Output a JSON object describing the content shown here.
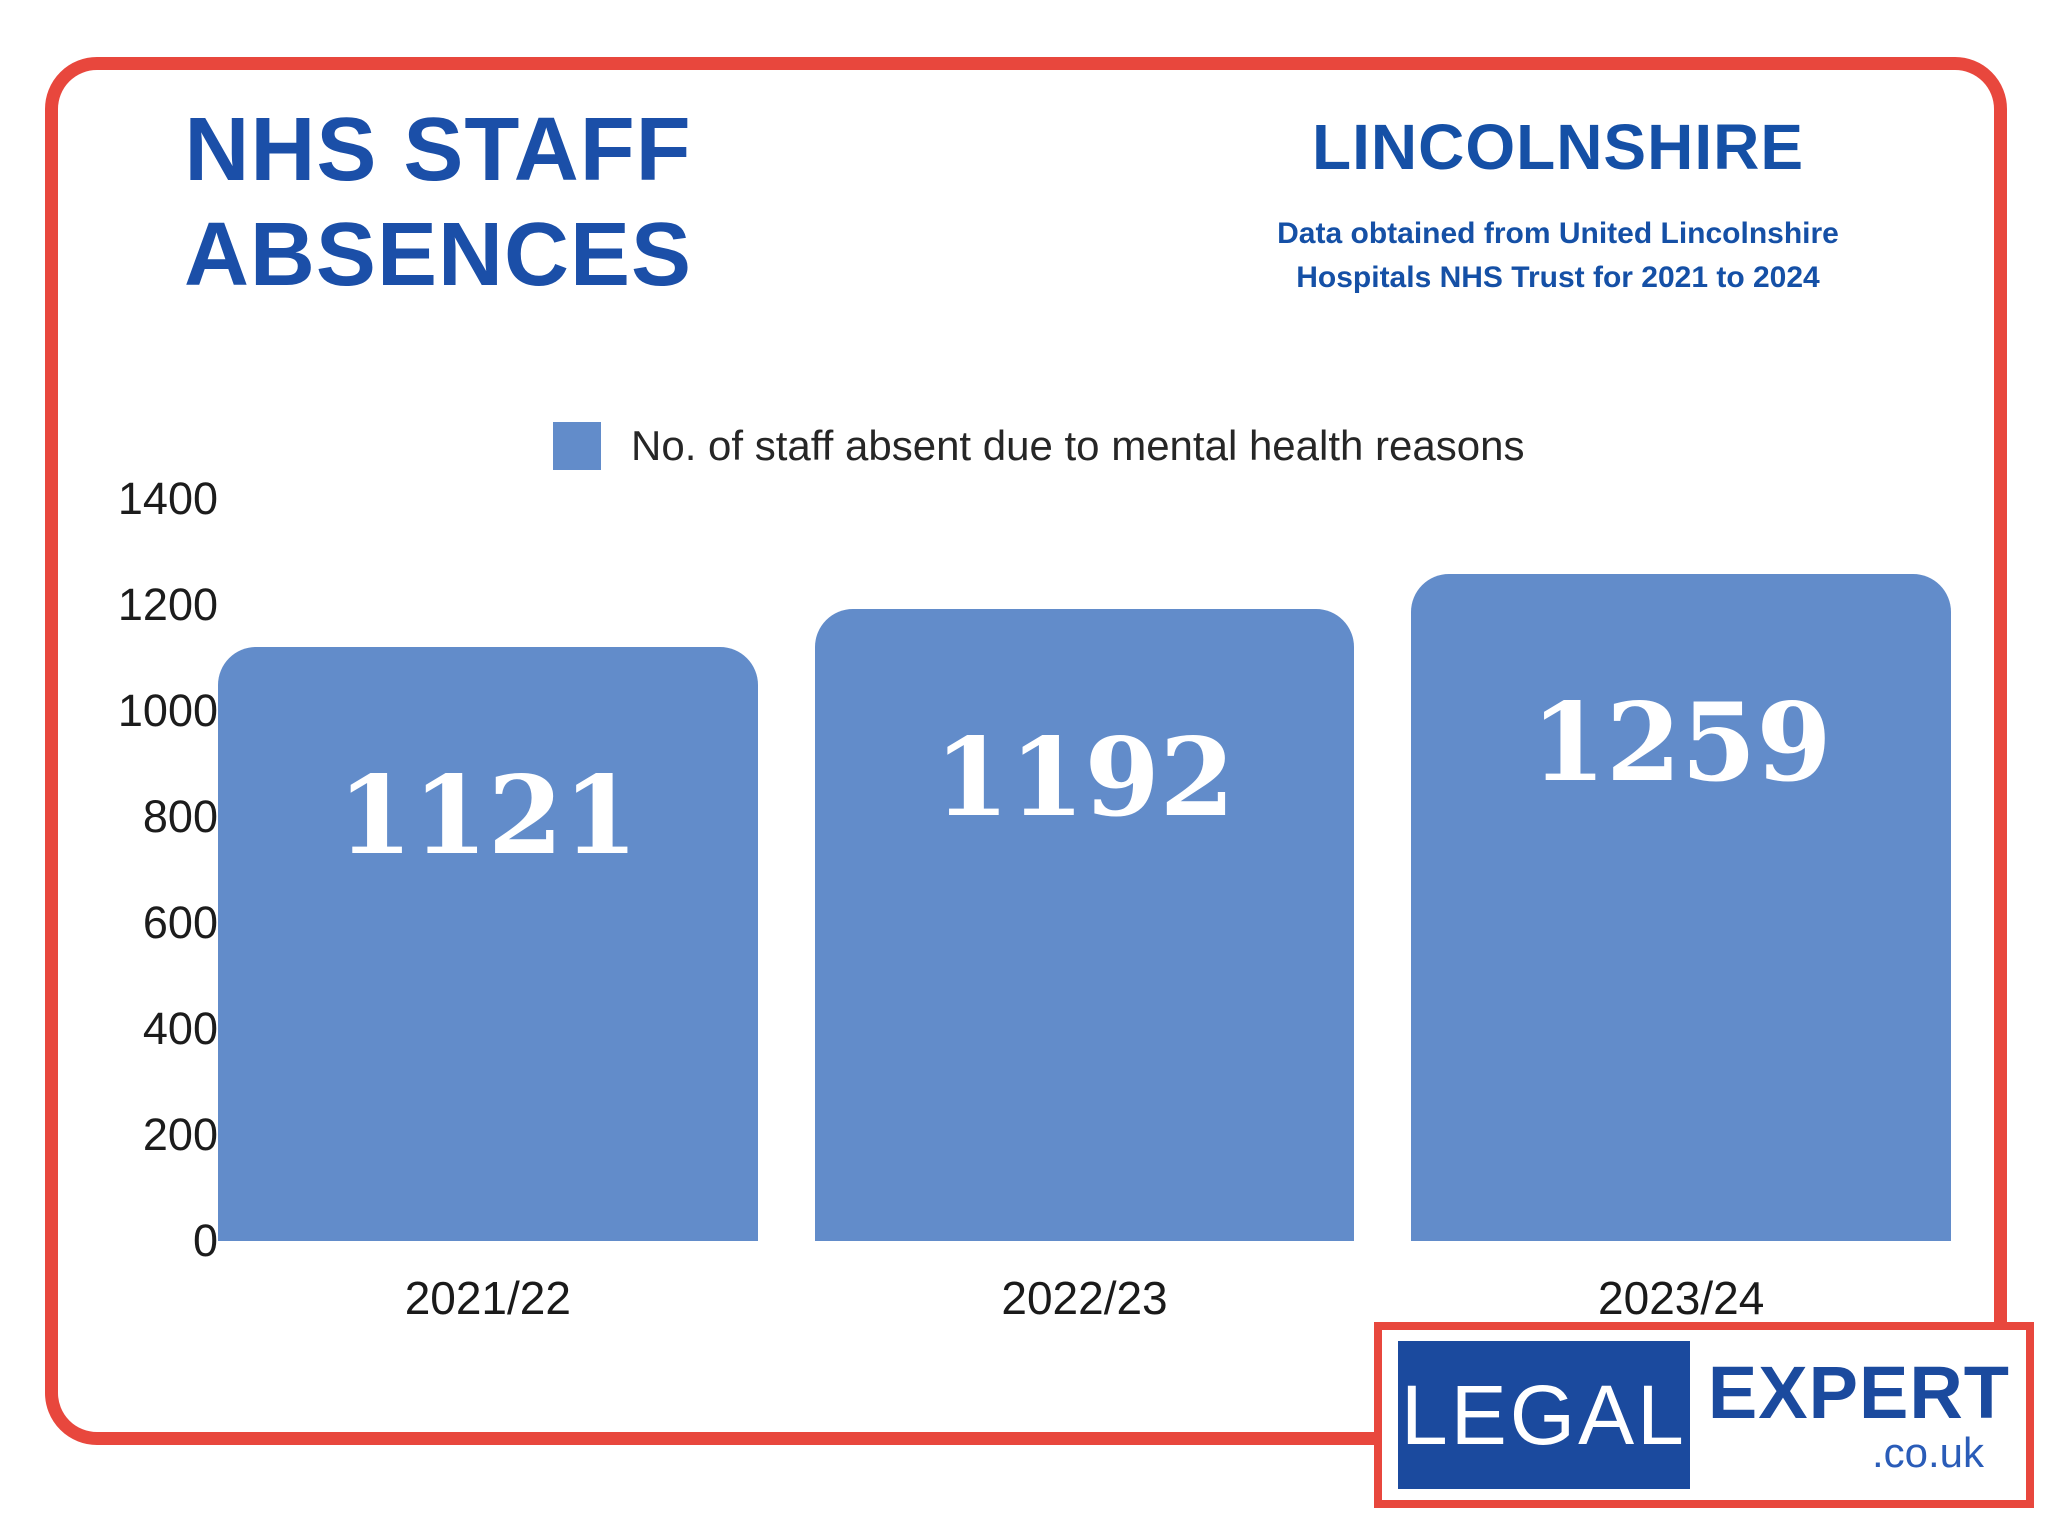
{
  "header": {
    "title_line1": "NHS STAFF",
    "title_line2": "ABSENCES",
    "region": "LINCOLNSHIRE",
    "source_line1": "Data obtained from United Lincolnshire",
    "source_line2": "Hospitals NHS Trust for 2021 to 2024"
  },
  "legend": {
    "label": "No. of staff absent due to mental health reasons",
    "swatch_color": "#628cca"
  },
  "chart_data": {
    "type": "bar",
    "title": "NHS Staff Absences — Lincolnshire",
    "categories": [
      "2021/22",
      "2022/23",
      "2023/24"
    ],
    "values": [
      1121,
      1192,
      1259
    ],
    "series_name": "No. of staff absent due to mental health reasons",
    "xlabel": "",
    "ylabel": "",
    "ylim": [
      0,
      1400
    ],
    "yticks": [
      0,
      200,
      400,
      600,
      800,
      1000,
      1200,
      1400
    ],
    "grid": false,
    "legend_position": "top-center",
    "bar_color": "#628cca",
    "value_label_color": "#ffffff",
    "value_labels_inside_bars": true
  },
  "branding": {
    "logo_part1": "LEGAL",
    "logo_part2": "EXPERT",
    "logo_part3": ".co.uk"
  },
  "colors": {
    "accent_red": "#e8473d",
    "brand_blue": "#1b4fa8",
    "region_blue": "#1550a6",
    "bar_blue": "#628cca",
    "logo_navy": "#1b4a9e",
    "axis_text": "#1c1c1c"
  }
}
